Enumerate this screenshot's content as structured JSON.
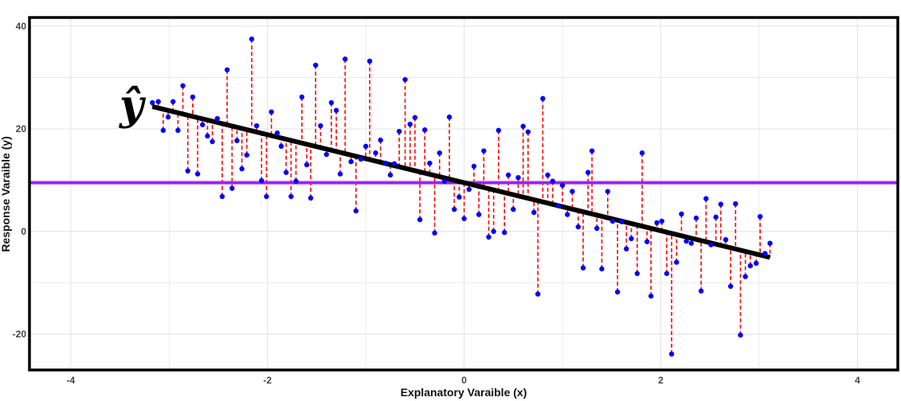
{
  "chart_data": {
    "type": "scatter",
    "title": "",
    "xlabel": "Explanatory Varaible (x)",
    "ylabel": "Response Varaible (y)",
    "xlim": [
      -4.42,
      4.41
    ],
    "ylim": [
      -27.0,
      41.7
    ],
    "x_ticks": [
      -4,
      -2,
      0,
      2,
      4
    ],
    "y_ticks": [
      -20,
      0,
      20,
      40
    ],
    "x_tick_labels": [
      "-4",
      "-2",
      "0",
      "2",
      "4"
    ],
    "y_tick_labels": [
      "-20",
      "0",
      "20",
      "40"
    ],
    "grid": true,
    "annotation": "ŷ",
    "colors": {
      "points": "#0000ff",
      "residuals": "#ff0000",
      "fit_line": "#000000",
      "mean_line": "#a020f0",
      "grid": "#e6e6e6",
      "border": "#000000"
    },
    "mean_y": 9.5,
    "fit": {
      "intercept": 9.5,
      "slope": -4.68,
      "x_range": [
        -3.17,
        3.11
      ]
    },
    "points": {
      "x": [
        -3.17,
        -3.11,
        -3.06,
        -3.01,
        -2.96,
        -2.91,
        -2.86,
        -2.81,
        -2.76,
        -2.71,
        -2.66,
        -2.61,
        -2.56,
        -2.51,
        -2.46,
        -2.41,
        -2.36,
        -2.31,
        -2.26,
        -2.21,
        -2.16,
        -2.11,
        -2.06,
        -2.01,
        -1.96,
        -1.9,
        -1.86,
        -1.81,
        -1.76,
        -1.71,
        -1.65,
        -1.6,
        -1.56,
        -1.51,
        -1.46,
        -1.4,
        -1.35,
        -1.3,
        -1.26,
        -1.21,
        -1.15,
        -1.1,
        -1.05,
        -1.0,
        -0.96,
        -0.9,
        -0.85,
        -0.8,
        -0.75,
        -0.71,
        -0.66,
        -0.6,
        -0.55,
        -0.5,
        -0.45,
        -0.4,
        -0.35,
        -0.3,
        -0.25,
        -0.2,
        -0.15,
        -0.1,
        -0.05,
        0.0,
        0.05,
        0.1,
        0.15,
        0.2,
        0.25,
        0.3,
        0.35,
        0.41,
        0.45,
        0.5,
        0.55,
        0.6,
        0.65,
        0.71,
        0.75,
        0.8,
        0.85,
        0.9,
        0.96,
        1.0,
        1.05,
        1.1,
        1.16,
        1.21,
        1.26,
        1.3,
        1.35,
        1.4,
        1.46,
        1.51,
        1.56,
        1.6,
        1.65,
        1.7,
        1.76,
        1.81,
        1.86,
        1.9,
        1.96,
        2.01,
        2.06,
        2.11,
        2.16,
        2.21,
        2.26,
        2.31,
        2.36,
        2.41,
        2.46,
        2.51,
        2.56,
        2.61,
        2.66,
        2.71,
        2.76,
        2.81,
        2.86,
        2.91,
        2.97,
        3.01,
        3.06,
        3.11
      ],
      "y": [
        25.1,
        25.3,
        19.7,
        22.3,
        25.3,
        19.7,
        28.4,
        11.8,
        26.2,
        11.2,
        20.8,
        18.6,
        17.5,
        22.0,
        6.8,
        31.5,
        8.4,
        17.7,
        12.2,
        14.9,
        37.5,
        20.6,
        9.9,
        6.8,
        23.3,
        19.2,
        16.6,
        11.5,
        6.8,
        9.8,
        26.2,
        13.0,
        6.5,
        32.4,
        20.6,
        15.0,
        25.1,
        23.6,
        11.2,
        33.6,
        13.6,
        4.0,
        14.1,
        16.6,
        33.2,
        15.3,
        17.8,
        13.3,
        11.0,
        13.2,
        19.5,
        29.6,
        20.9,
        22.2,
        2.3,
        19.8,
        13.3,
        -0.3,
        15.3,
        9.8,
        22.3,
        4.3,
        6.7,
        2.5,
        8.2,
        12.7,
        3.3,
        15.7,
        -1.1,
        0.0,
        19.7,
        -0.2,
        11.0,
        4.3,
        10.5,
        20.5,
        19.4,
        3.7,
        -12.2,
        25.9,
        11.0,
        9.8,
        5.0,
        9.0,
        3.3,
        7.8,
        0.9,
        -7.1,
        11.5,
        15.7,
        0.6,
        -7.3,
        7.8,
        2.0,
        -11.8,
        1.9,
        -3.4,
        -1.4,
        -8.2,
        15.3,
        -2.0,
        -12.6,
        1.7,
        2.0,
        -8.2,
        -23.9,
        -6.0,
        3.4,
        -1.9,
        -2.3,
        2.6,
        -11.6,
        6.4,
        -2.6,
        2.8,
        5.3,
        -1.6,
        -10.7,
        5.4,
        -20.2,
        -8.8,
        -6.7,
        -6.2,
        2.9,
        -4.3,
        -2.3
      ]
    }
  }
}
